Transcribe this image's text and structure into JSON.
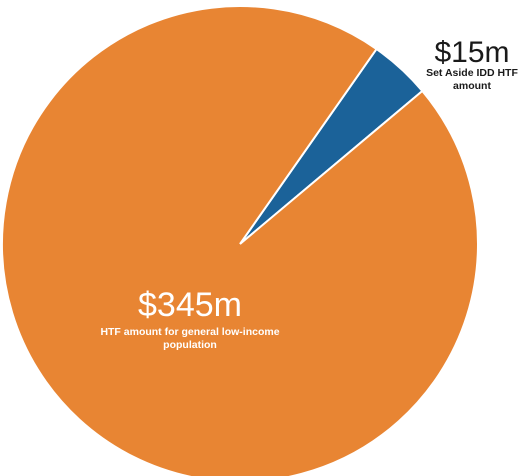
{
  "chart_data": {
    "type": "pie",
    "slices": [
      {
        "value": 345,
        "label": "$345m",
        "caption": "HTF amount for general low-income population",
        "color": "#E88533"
      },
      {
        "value": 15,
        "label": "$15m",
        "caption": "Set Aside IDD HTF amount",
        "color": "#1B6299"
      }
    ],
    "title": "",
    "legend": "none"
  },
  "labels": {
    "large_value": "$345m",
    "large_caption": "HTF amount for general low-income population",
    "small_value": "$15m",
    "small_caption": "Set Aside IDD HTF amount"
  }
}
